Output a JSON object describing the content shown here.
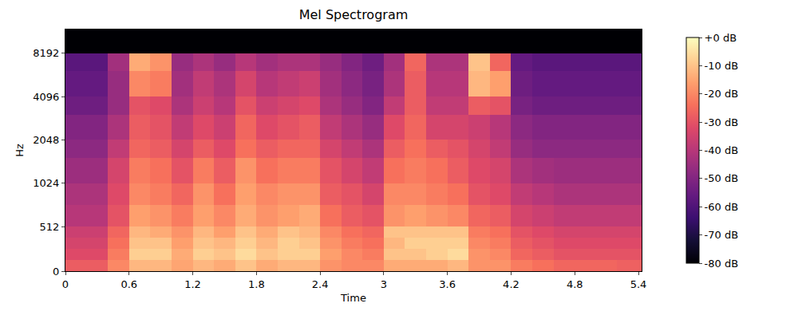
{
  "chart_data": {
    "type": "heatmap",
    "title": "Mel Spectrogram",
    "x_label": "Time",
    "y_label": "Hz",
    "time_edges": [
      0,
      0.2,
      0.4,
      0.6,
      0.8,
      1.0,
      1.2,
      1.4,
      1.6,
      1.8,
      2.0,
      2.2,
      2.4,
      2.6,
      2.8,
      3.0,
      3.2,
      3.4,
      3.6,
      3.8,
      4.0,
      4.2,
      4.4,
      4.6,
      4.8,
      5.0,
      5.2,
      5.43
    ],
    "freq_edges": [
      0,
      128,
      256,
      384,
      512,
      768,
      1024,
      1536,
      2048,
      3072,
      4096,
      6144,
      8192,
      12000
    ],
    "cells": [
      [
        -28,
        -28,
        -20,
        -12,
        -12,
        -15,
        -12,
        -14,
        -10,
        -14,
        -12,
        -12,
        -18,
        -20,
        -20,
        -14,
        -14,
        -14,
        -12,
        -18,
        -18,
        -22,
        -24,
        -26,
        -26,
        -26,
        -27
      ],
      [
        -32,
        -32,
        -22,
        -8,
        -8,
        -14,
        -8,
        -10,
        -6,
        -10,
        -8,
        -8,
        -16,
        -20,
        -22,
        -10,
        -10,
        -8,
        -6,
        -18,
        -20,
        -26,
        -28,
        -30,
        -30,
        -30,
        -30
      ],
      [
        -34,
        -34,
        -24,
        -10,
        -10,
        -16,
        -10,
        -12,
        -8,
        -12,
        -8,
        -10,
        -18,
        -22,
        -24,
        -12,
        -8,
        -8,
        -8,
        -20,
        -22,
        -28,
        -30,
        -32,
        -32,
        -32,
        -32
      ],
      [
        -36,
        -36,
        -26,
        -12,
        -14,
        -18,
        -12,
        -16,
        -10,
        -14,
        -10,
        -12,
        -20,
        -24,
        -26,
        -10,
        -10,
        -10,
        -10,
        -22,
        -24,
        -30,
        -32,
        -34,
        -34,
        -34,
        -34
      ],
      [
        -40,
        -40,
        -30,
        -16,
        -18,
        -22,
        -16,
        -20,
        -14,
        -18,
        -16,
        -14,
        -24,
        -28,
        -30,
        -18,
        -16,
        -18,
        -20,
        -26,
        -28,
        -34,
        -36,
        -38,
        -38,
        -38,
        -38
      ],
      [
        -42,
        -42,
        -32,
        -20,
        -22,
        -26,
        -18,
        -24,
        -16,
        -20,
        -18,
        -18,
        -28,
        -30,
        -34,
        -20,
        -20,
        -22,
        -24,
        -30,
        -32,
        -38,
        -40,
        -42,
        -42,
        -42,
        -42
      ],
      [
        -45,
        -45,
        -34,
        -22,
        -24,
        -30,
        -22,
        -28,
        -18,
        -24,
        -22,
        -22,
        -30,
        -34,
        -38,
        -24,
        -22,
        -24,
        -28,
        -32,
        -34,
        -42,
        -44,
        -45,
        -45,
        -45,
        -45
      ],
      [
        -48,
        -48,
        -38,
        -26,
        -28,
        -34,
        -28,
        -32,
        -24,
        -28,
        -26,
        -26,
        -34,
        -38,
        -42,
        -28,
        -24,
        -28,
        -30,
        -34,
        -38,
        -46,
        -48,
        -48,
        -48,
        -48,
        -48
      ],
      [
        -50,
        -50,
        -42,
        -28,
        -30,
        -38,
        -32,
        -36,
        -26,
        -32,
        -30,
        -28,
        -38,
        -42,
        -46,
        -32,
        -26,
        -34,
        -34,
        -36,
        -40,
        -48,
        -50,
        -50,
        -50,
        -50,
        -50
      ],
      [
        -54,
        -54,
        -46,
        -30,
        -32,
        -42,
        -36,
        -40,
        -30,
        -36,
        -34,
        -32,
        -42,
        -46,
        -50,
        -38,
        -28,
        -38,
        -38,
        -28,
        -30,
        -52,
        -54,
        -54,
        -54,
        -54,
        -54
      ],
      [
        -56,
        -56,
        -46,
        -20,
        -22,
        -44,
        -38,
        -42,
        -34,
        -40,
        -38,
        -36,
        -44,
        -48,
        -52,
        -42,
        -28,
        -40,
        -40,
        -12,
        -16,
        -54,
        -56,
        -56,
        -56,
        -56,
        -56
      ],
      [
        -58,
        -58,
        -44,
        -14,
        -18,
        -46,
        -42,
        -46,
        -40,
        -44,
        -42,
        -42,
        -46,
        -50,
        -54,
        -44,
        -26,
        -42,
        -42,
        -10,
        -26,
        -56,
        -58,
        -58,
        -58,
        -58,
        -58
      ],
      [
        -80,
        -80,
        -80,
        -80,
        -80,
        -80,
        -80,
        -80,
        -80,
        -80,
        -80,
        -80,
        -80,
        -80,
        -80,
        -80,
        -80,
        -80,
        -80,
        -80,
        -80,
        -80,
        -80,
        -80,
        -80,
        -80,
        -80
      ]
    ],
    "xlim": [
      0,
      5.43
    ],
    "xticks": [
      0,
      0.6,
      1.2,
      1.8,
      2.4,
      3,
      3.6,
      4.2,
      4.8,
      5.4
    ],
    "ylim": [
      0,
      12000
    ],
    "yticks": [
      0,
      512,
      1024,
      2048,
      4096,
      8192
    ],
    "colorbar_range": [
      -80,
      0
    ],
    "colorbar_ticks": [
      {
        "value": 0,
        "label": "+0 dB"
      },
      {
        "value": -10,
        "label": "-10 dB"
      },
      {
        "value": -20,
        "label": "-20 dB"
      },
      {
        "value": -30,
        "label": "-30 dB"
      },
      {
        "value": -40,
        "label": "-40 dB"
      },
      {
        "value": -50,
        "label": "-50 dB"
      },
      {
        "value": -60,
        "label": "-60 dB"
      },
      {
        "value": -70,
        "label": "-70 dB"
      },
      {
        "value": -80,
        "label": "-80 dB"
      }
    ]
  }
}
